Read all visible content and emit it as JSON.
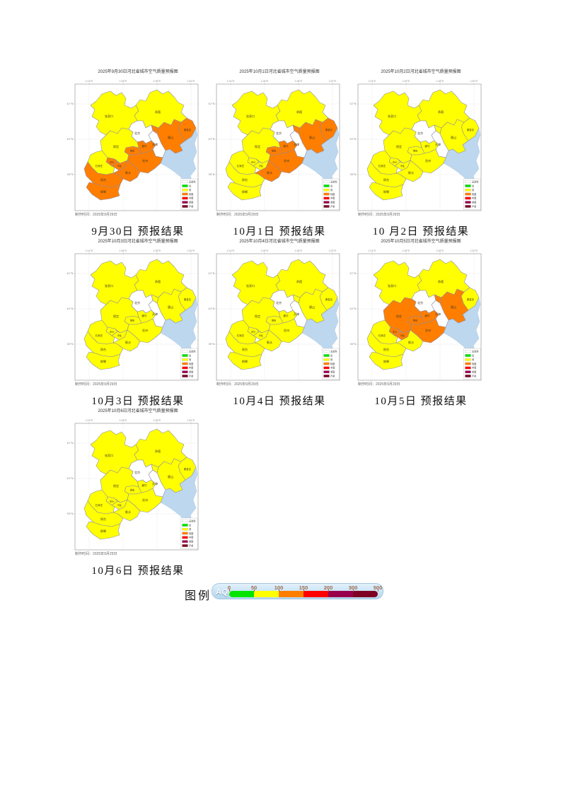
{
  "page": {
    "background": "#ffffff"
  },
  "axis": {
    "x_ticks": [
      "114°E",
      "116°E",
      "118°E",
      "120°E"
    ],
    "y_ticks": [
      "42°N",
      "40°N",
      "38°N"
    ]
  },
  "category_colors": {
    "无": "#ffffff",
    "优": "#00e400",
    "良": "#ffff00",
    "轻度": "#ff7e00",
    "中度": "#ff0000",
    "重度": "#99004c",
    "严重": "#7e0023"
  },
  "mini_legend": [
    {
      "label": "无资料",
      "color": "#ffffff"
    },
    {
      "label": "优",
      "color": "#00e400"
    },
    {
      "label": "良",
      "color": "#ffff00"
    },
    {
      "label": "轻度",
      "color": "#ff7e00"
    },
    {
      "label": "中度",
      "color": "#ff0000"
    },
    {
      "label": "重度",
      "color": "#99004c"
    },
    {
      "label": "严重",
      "color": "#7e0023"
    }
  ],
  "maps": [
    {
      "title": "2025年9月30日河北省城市空气质量预报图",
      "caption": "9月30日 预报结果",
      "note": "制作时间：2025年9月29日",
      "cities": {
        "张家口": "良",
        "承德": "良",
        "秦皇岛": "轻度",
        "唐山": "轻度",
        "北京": "无",
        "天津": "无",
        "廊坊": "轻度",
        "雄安": "轻度",
        "保定": "良",
        "定州": "轻度",
        "石家庄": "良",
        "辛集": "轻度",
        "沧州": "轻度",
        "衡水": "轻度",
        "邢台": "轻度",
        "邯郸": "轻度"
      }
    },
    {
      "title": "2025年10月1日河北省城市空气质量预报图",
      "caption": "10月1日 预报结果",
      "note": "制作时间：2025年9月29日",
      "cities": {
        "张家口": "良",
        "承德": "良",
        "秦皇岛": "轻度",
        "唐山": "轻度",
        "北京": "无",
        "天津": "无",
        "廊坊": "轻度",
        "雄安": "轻度",
        "保定": "良",
        "定州": "良",
        "石家庄": "良",
        "辛集": "良",
        "沧州": "轻度",
        "衡水": "轻度",
        "邢台": "良",
        "邯郸": "良"
      }
    },
    {
      "title": "2025年10月2日河北省城市空气质量预报图",
      "caption": "10 月2日 预报结果",
      "note": "制作时间：2025年9月29日",
      "cities": {
        "张家口": "良",
        "承德": "良",
        "秦皇岛": "良",
        "唐山": "良",
        "北京": "无",
        "天津": "无",
        "廊坊": "良",
        "雄安": "良",
        "保定": "良",
        "定州": "良",
        "石家庄": "良",
        "辛集": "良",
        "沧州": "良",
        "衡水": "良",
        "邢台": "良",
        "邯郸": "良"
      }
    },
    {
      "title": "2025年10月3日河北省城市空气质量预报图",
      "caption": "10月3日 预报结果",
      "note": "制作时间：2025年9月29日",
      "cities": {
        "张家口": "良",
        "承德": "良",
        "秦皇岛": "良",
        "唐山": "良",
        "北京": "无",
        "天津": "无",
        "廊坊": "良",
        "雄安": "良",
        "保定": "良",
        "定州": "良",
        "石家庄": "良",
        "辛集": "良",
        "沧州": "良",
        "衡水": "良",
        "邢台": "良",
        "邯郸": "良"
      }
    },
    {
      "title": "2025年10月4日河北省城市空气质量预报图",
      "caption": "10月4日 预报结果",
      "note": "制作时间：2025年9月29日",
      "cities": {
        "张家口": "良",
        "承德": "良",
        "秦皇岛": "良",
        "唐山": "良",
        "北京": "无",
        "天津": "无",
        "廊坊": "良",
        "雄安": "良",
        "保定": "良",
        "定州": "良",
        "石家庄": "良",
        "辛集": "良",
        "沧州": "良",
        "衡水": "良",
        "邢台": "良",
        "邯郸": "良"
      }
    },
    {
      "title": "2025年10月5日河北省城市空气质量预报图",
      "caption": "10月5日 预报结果",
      "note": "制作时间：2025年9月29日",
      "cities": {
        "张家口": "良",
        "承德": "良",
        "秦皇岛": "良",
        "唐山": "轻度",
        "北京": "无",
        "天津": "无",
        "廊坊": "轻度",
        "雄安": "轻度",
        "保定": "轻度",
        "定州": "轻度",
        "石家庄": "良",
        "辛集": "轻度",
        "沧州": "轻度",
        "衡水": "良",
        "邢台": "良",
        "邯郸": "良"
      }
    },
    {
      "title": "2025年10月6日河北省城市空气质量预报图",
      "caption": "10月6日 预报结果",
      "note": "制作时间：2025年9月29日",
      "cities": {
        "张家口": "良",
        "承德": "良",
        "秦皇岛": "良",
        "唐山": "良",
        "北京": "无",
        "天津": "无",
        "廊坊": "良",
        "雄安": "良",
        "保定": "良",
        "定州": "良",
        "石家庄": "良",
        "辛集": "良",
        "沧州": "良",
        "衡水": "良",
        "邢台": "良",
        "邯郸": "良"
      }
    }
  ],
  "legend_panel": {
    "label": "图例",
    "aqi_label": "AQI",
    "ticks": [
      "0",
      "50",
      "100",
      "150",
      "200",
      "300",
      "500"
    ],
    "segments": [
      {
        "range": "0-50",
        "color": "#00e400"
      },
      {
        "range": "50-100",
        "color": "#ffff00"
      },
      {
        "range": "100-150",
        "color": "#ff7e00"
      },
      {
        "range": "150-200",
        "color": "#ff0000"
      },
      {
        "range": "200-300",
        "color": "#99004c"
      },
      {
        "range": "300-500",
        "color": "#7e0023"
      }
    ],
    "background": "#bfdcee"
  }
}
